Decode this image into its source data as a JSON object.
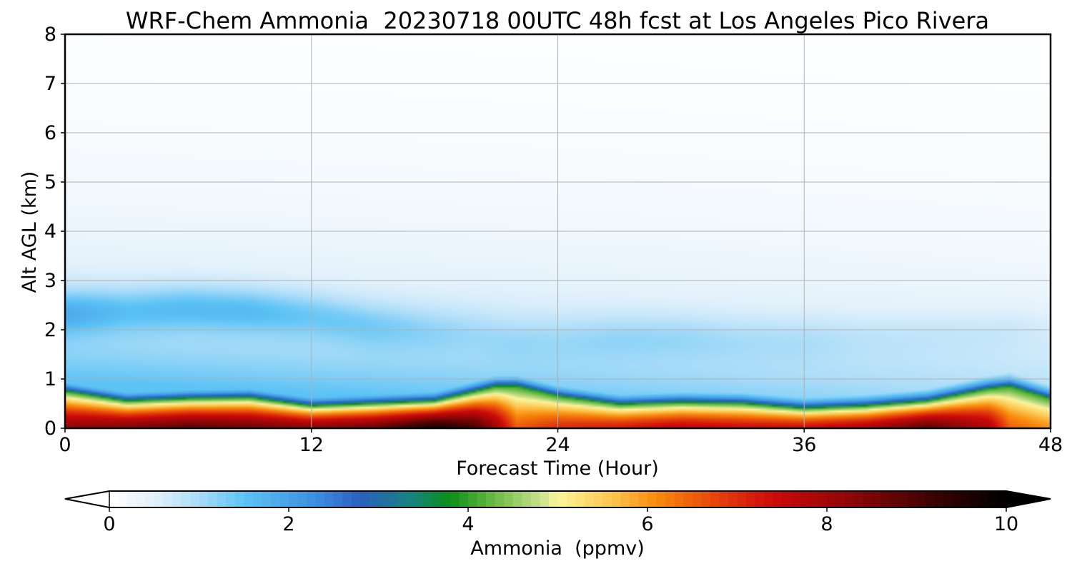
{
  "chart_data": {
    "type": "heatmap",
    "title": "WRF-Chem Ammonia  20230718 00UTC 48h fcst at Los Angeles Pico Rivera",
    "xlabel": "Forecast Time (Hour)",
    "ylabel": "Alt AGL (km)",
    "xlim": [
      0,
      48
    ],
    "ylim": [
      0,
      8
    ],
    "xticks": [
      "0",
      "12",
      "24",
      "36",
      "48"
    ],
    "xtick_values": [
      0,
      12,
      24,
      36,
      48
    ],
    "yticks": [
      "0",
      "1",
      "2",
      "3",
      "4",
      "5",
      "6",
      "7",
      "8"
    ],
    "ytick_values": [
      0,
      1,
      2,
      3,
      4,
      5,
      6,
      7,
      8
    ],
    "grid": true,
    "colorbar": {
      "label": "Ammonia  (ppmv)",
      "min": 0,
      "max": 10,
      "ticks": [
        "0",
        "2",
        "4",
        "6",
        "8",
        "10"
      ],
      "tick_values": [
        0,
        2,
        4,
        6,
        8,
        10
      ],
      "extend": "both",
      "levels": 100
    },
    "colormap": [
      {
        "v": 0.0,
        "c": "#ffffff"
      },
      {
        "v": 0.5,
        "c": "#e3f1fb"
      },
      {
        "v": 1.0,
        "c": "#a9dcf8"
      },
      {
        "v": 1.5,
        "c": "#5cc3f5"
      },
      {
        "v": 2.3,
        "c": "#3b8fe0"
      },
      {
        "v": 2.8,
        "c": "#2a5fbf"
      },
      {
        "v": 3.4,
        "c": "#16857a"
      },
      {
        "v": 3.8,
        "c": "#0b8f16"
      },
      {
        "v": 4.3,
        "c": "#6dbb45"
      },
      {
        "v": 4.8,
        "c": "#c6e08c"
      },
      {
        "v": 5.0,
        "c": "#fdf59b"
      },
      {
        "v": 5.6,
        "c": "#fcc54f"
      },
      {
        "v": 6.1,
        "c": "#f98b0c"
      },
      {
        "v": 6.8,
        "c": "#e4400c"
      },
      {
        "v": 7.4,
        "c": "#cc0a0a"
      },
      {
        "v": 8.3,
        "c": "#8c0606"
      },
      {
        "v": 9.2,
        "c": "#3a0202"
      },
      {
        "v": 10.0,
        "c": "#000000"
      }
    ],
    "series": [
      {
        "x": [
          0,
          3,
          6,
          9,
          12,
          15,
          18,
          20,
          21,
          22,
          24,
          27,
          30,
          33,
          36,
          39,
          42,
          45,
          46,
          48
        ],
        "boundary_layer_top_km": [
          0.75,
          0.55,
          0.6,
          0.62,
          0.45,
          0.5,
          0.55,
          0.75,
          0.85,
          0.85,
          0.65,
          0.48,
          0.52,
          0.5,
          0.4,
          0.45,
          0.55,
          0.8,
          0.85,
          0.6
        ],
        "surface_value_ppmv": [
          8.2,
          8.4,
          8.8,
          8.6,
          8.3,
          8.6,
          9.6,
          9.0,
          8.0,
          6.5,
          7.0,
          7.2,
          7.6,
          7.4,
          7.4,
          7.8,
          8.8,
          7.8,
          6.5,
          6.0
        ],
        "upper_layer_km": [
          2.35,
          2.4,
          2.45,
          2.4,
          2.3,
          2.1,
          2.0,
          1.95,
          1.85,
          1.8,
          1.8,
          1.85,
          1.85,
          1.8,
          1.8,
          1.85,
          1.9,
          1.95,
          2.0,
          2.0
        ],
        "upper_layer_value_ppmv": [
          2.3,
          2.0,
          2.1,
          2.1,
          1.9,
          1.8,
          1.6,
          1.5,
          1.5,
          1.5,
          1.5,
          1.6,
          1.6,
          1.5,
          1.5,
          1.4,
          1.4,
          1.4,
          1.4,
          1.3
        ]
      }
    ]
  }
}
